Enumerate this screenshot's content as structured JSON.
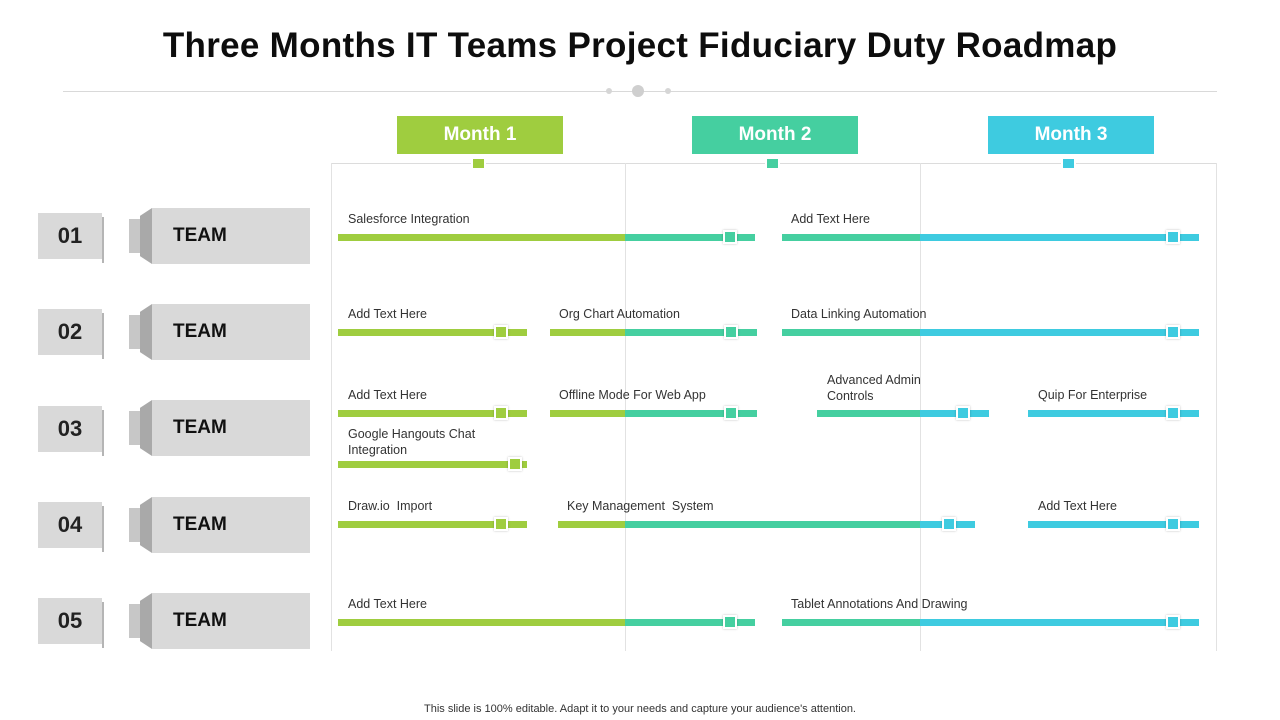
{
  "title": "Three Months IT Teams Project Fiduciary Duty Roadmap",
  "colors": {
    "month1": "#9fcd3f",
    "month2": "#45cfa0",
    "month3": "#3ecbe0"
  },
  "months": [
    {
      "label": "Month 1"
    },
    {
      "label": "Month 2"
    },
    {
      "label": "Month 3"
    }
  ],
  "teams": [
    {
      "number": "01",
      "label": "TEAM"
    },
    {
      "number": "02",
      "label": "TEAM"
    },
    {
      "number": "03",
      "label": "TEAM"
    },
    {
      "number": "04",
      "label": "TEAM"
    },
    {
      "number": "05",
      "label": "TEAM"
    }
  ],
  "tasks": [
    {
      "team": "01",
      "label": "Salesforce Integration"
    },
    {
      "team": "01",
      "label": "Add Text Here"
    },
    {
      "team": "02",
      "label": "Add Text Here"
    },
    {
      "team": "02",
      "label": "Org Chart Automation"
    },
    {
      "team": "02",
      "label": "Data Linking Automation"
    },
    {
      "team": "03",
      "label": "Add Text Here"
    },
    {
      "team": "03",
      "label": "Offline Mode For Web App"
    },
    {
      "team": "03",
      "label": "Advanced Admin Controls"
    },
    {
      "team": "03",
      "label": "Quip For Enterprise"
    },
    {
      "team": "03",
      "label": "Google Hangouts Chat Integration"
    },
    {
      "team": "04",
      "label": "Draw.io  Import"
    },
    {
      "team": "04",
      "label": "Key Management  System"
    },
    {
      "team": "04",
      "label": "Add Text Here"
    },
    {
      "team": "05",
      "label": "Add Text Here"
    },
    {
      "team": "05",
      "label": "Tablet Annotations And Drawing"
    }
  ],
  "footer": "This slide is 100% editable. Adapt it to your needs and capture your audience's attention."
}
